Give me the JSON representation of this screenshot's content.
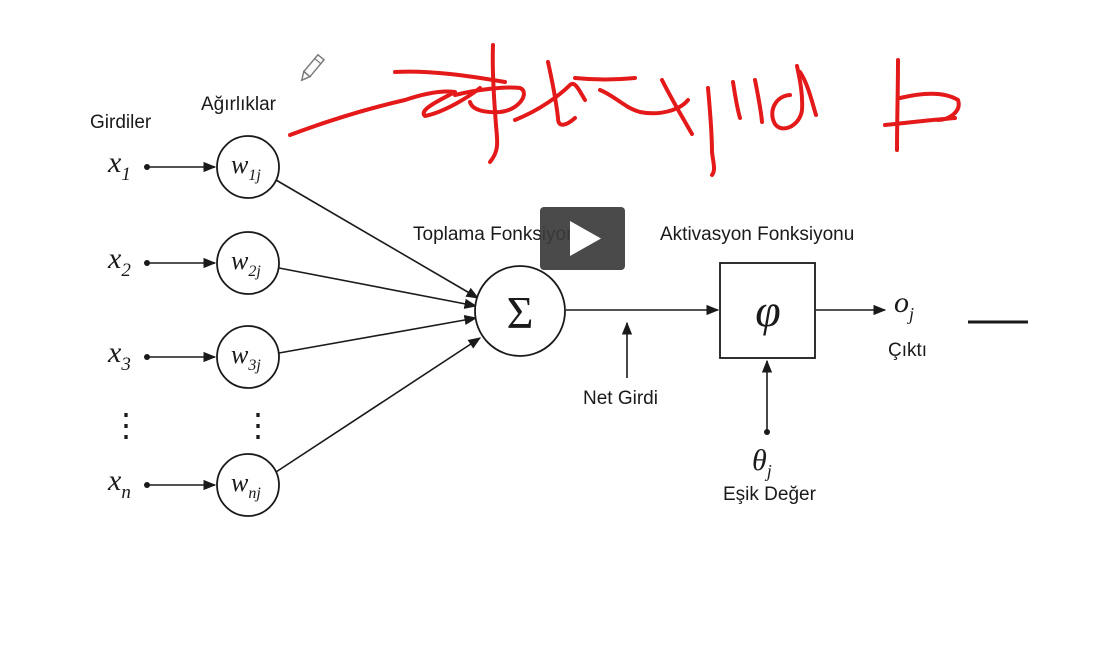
{
  "diagram": {
    "labels": {
      "inputs": "Girdiler",
      "weights": "Ağırlıklar",
      "summation": "Toplama Fonksiyonu",
      "activation": "Aktivasyon Fonksiyonu",
      "net_input": "Net Girdi",
      "output": "Çıktı",
      "threshold": "Eşik Değer"
    },
    "inputs": [
      {
        "sym": "x",
        "sub": "1"
      },
      {
        "sym": "x",
        "sub": "2"
      },
      {
        "sym": "x",
        "sub": "3"
      },
      {
        "sym": "x",
        "sub": "n"
      }
    ],
    "weights": [
      {
        "sym": "w",
        "sub": "1j"
      },
      {
        "sym": "w",
        "sub": "2j"
      },
      {
        "sym": "w",
        "sub": "3j"
      },
      {
        "sym": "w",
        "sub": "nj"
      }
    ],
    "sum_symbol": "Σ",
    "activation_symbol": "φ",
    "output_symbol": {
      "sym": "o",
      "sub": "j"
    },
    "threshold_symbol": {
      "sym": "θ",
      "sub": "j"
    },
    "ellipsis": "⋮"
  },
  "overlay": {
    "icons": [
      "pencil-icon",
      "play-icon"
    ]
  }
}
